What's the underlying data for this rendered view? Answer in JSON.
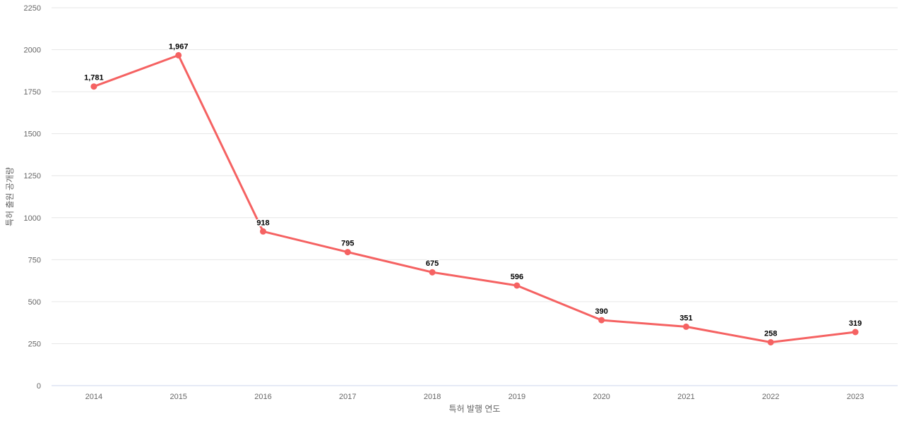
{
  "chart_data": {
    "type": "line",
    "title": "",
    "xlabel": "특허 발행 연도",
    "ylabel": "특허 출원 공개량",
    "categories": [
      "2014",
      "2015",
      "2016",
      "2017",
      "2018",
      "2019",
      "2020",
      "2021",
      "2022",
      "2023"
    ],
    "series": [
      {
        "name": "특허 출원 공개량",
        "values": [
          1781,
          1967,
          918,
          795,
          675,
          596,
          390,
          351,
          258,
          319
        ]
      }
    ],
    "data_labels": [
      "1,781",
      "1,967",
      "918",
      "795",
      "675",
      "596",
      "390",
      "351",
      "258",
      "319"
    ],
    "y_ticks": [
      0,
      250,
      500,
      750,
      1000,
      1250,
      1500,
      1750,
      2000,
      2250
    ],
    "ylim": [
      0,
      2250
    ],
    "grid": true,
    "legend": "none",
    "colors": {
      "line": "#f56262",
      "marker": "#f56262",
      "grid": "#e6e6e6",
      "axis_line": "#ccd6eb",
      "tick_label": "#666666",
      "axis_title": "#666666",
      "data_label": "#000000",
      "background": "#ffffff"
    }
  }
}
